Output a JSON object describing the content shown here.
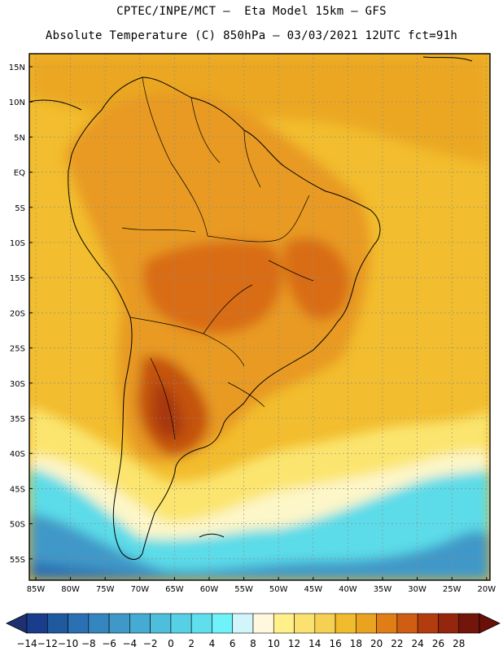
{
  "header": {
    "line1": "CPTEC/INPE/MCT –  Eta Model 15km – GFS",
    "line2": "Absolute Temperature (C) 850hPa – 03/03/2021 12UTC fct=91h"
  },
  "map": {
    "lat_labels": [
      "15N",
      "10N",
      "5N",
      "EQ",
      "5S",
      "10S",
      "15S",
      "20S",
      "25S",
      "30S",
      "35S",
      "40S",
      "45S",
      "50S",
      "55S"
    ],
    "lon_labels": [
      "85W",
      "80W",
      "75W",
      "70W",
      "65W",
      "60W",
      "55W",
      "50W",
      "45W",
      "40W",
      "35W",
      "30W",
      "25W",
      "20W"
    ],
    "ocean_color": "#f2bd2e",
    "grid": true
  },
  "colorbar": {
    "labels": [
      "-14",
      "-12",
      "-10",
      "-8",
      "-6",
      "-4",
      "-2",
      "0",
      "2",
      "4",
      "6",
      "8",
      "10",
      "12",
      "14",
      "16",
      "18",
      "20",
      "22",
      "24",
      "26",
      "28"
    ],
    "colors": [
      "#1a3c8c",
      "#1f5a9f",
      "#2a70b2",
      "#3585bf",
      "#3f98c8",
      "#46abd2",
      "#4dbfdb",
      "#55d0e4",
      "#5fdfee",
      "#6ff2f8",
      "#d2f5fb",
      "#fff8de",
      "#fff08a",
      "#fbe170",
      "#f6d050",
      "#f1bb2e",
      "#eaa320",
      "#e07d16",
      "#cf5d12",
      "#b33c0e",
      "#93260c",
      "#72150a"
    ],
    "under_color": "#1e3070",
    "over_color": "#6b0f0a"
  }
}
